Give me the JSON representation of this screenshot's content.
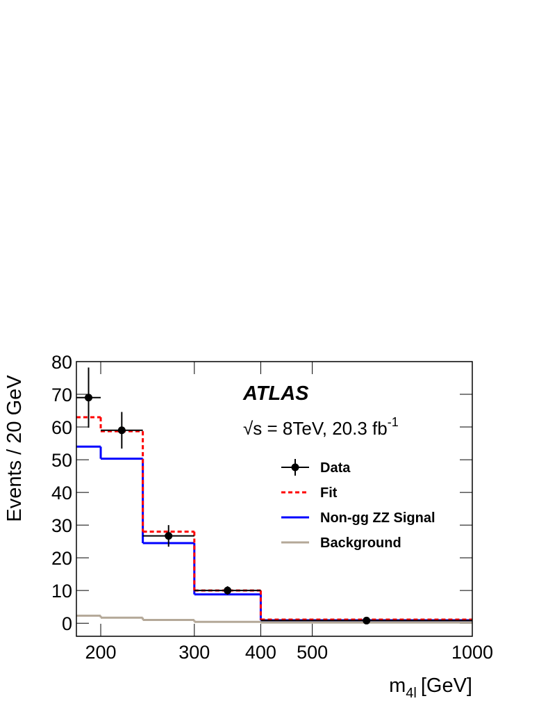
{
  "chart_data": {
    "type": "histogram",
    "title": "ATLAS",
    "annotation": {
      "text": "√s = 8TeV, 20.3 fb",
      "superscript": "-1"
    },
    "xlabel": {
      "text": "m",
      "subscript": "4l",
      "unit": "[GeV]"
    },
    "ylabel": "Events / 20 GeV",
    "xscale": "log",
    "bins": [
      180,
      200,
      240,
      300,
      400,
      1000
    ],
    "xlim": [
      180,
      1000
    ],
    "xticks": [
      200,
      300,
      400,
      500,
      1000
    ],
    "ylim": [
      -4,
      80
    ],
    "yticks": [
      0,
      10,
      20,
      30,
      40,
      50,
      60,
      70,
      80
    ],
    "legend": "upper right",
    "series": [
      {
        "name": "Data",
        "style": "points",
        "color": "#000000",
        "values": [
          69,
          59,
          26.7,
          10,
          0.8
        ],
        "errors": [
          9.2,
          5.6,
          3.3,
          1.3,
          0.3
        ]
      },
      {
        "name": "Fit",
        "style": "dashed",
        "color": "#ff0000",
        "values": [
          63,
          58.7,
          28,
          10,
          1.1
        ]
      },
      {
        "name": "Non-gg ZZ Signal",
        "style": "solid",
        "color": "#0000ff",
        "values": [
          54,
          50.3,
          24.5,
          8.8,
          0.9
        ]
      },
      {
        "name": "Background",
        "style": "solid",
        "color": "#b4a898",
        "values": [
          2.3,
          1.7,
          1.0,
          0.4,
          0.2
        ]
      }
    ]
  }
}
